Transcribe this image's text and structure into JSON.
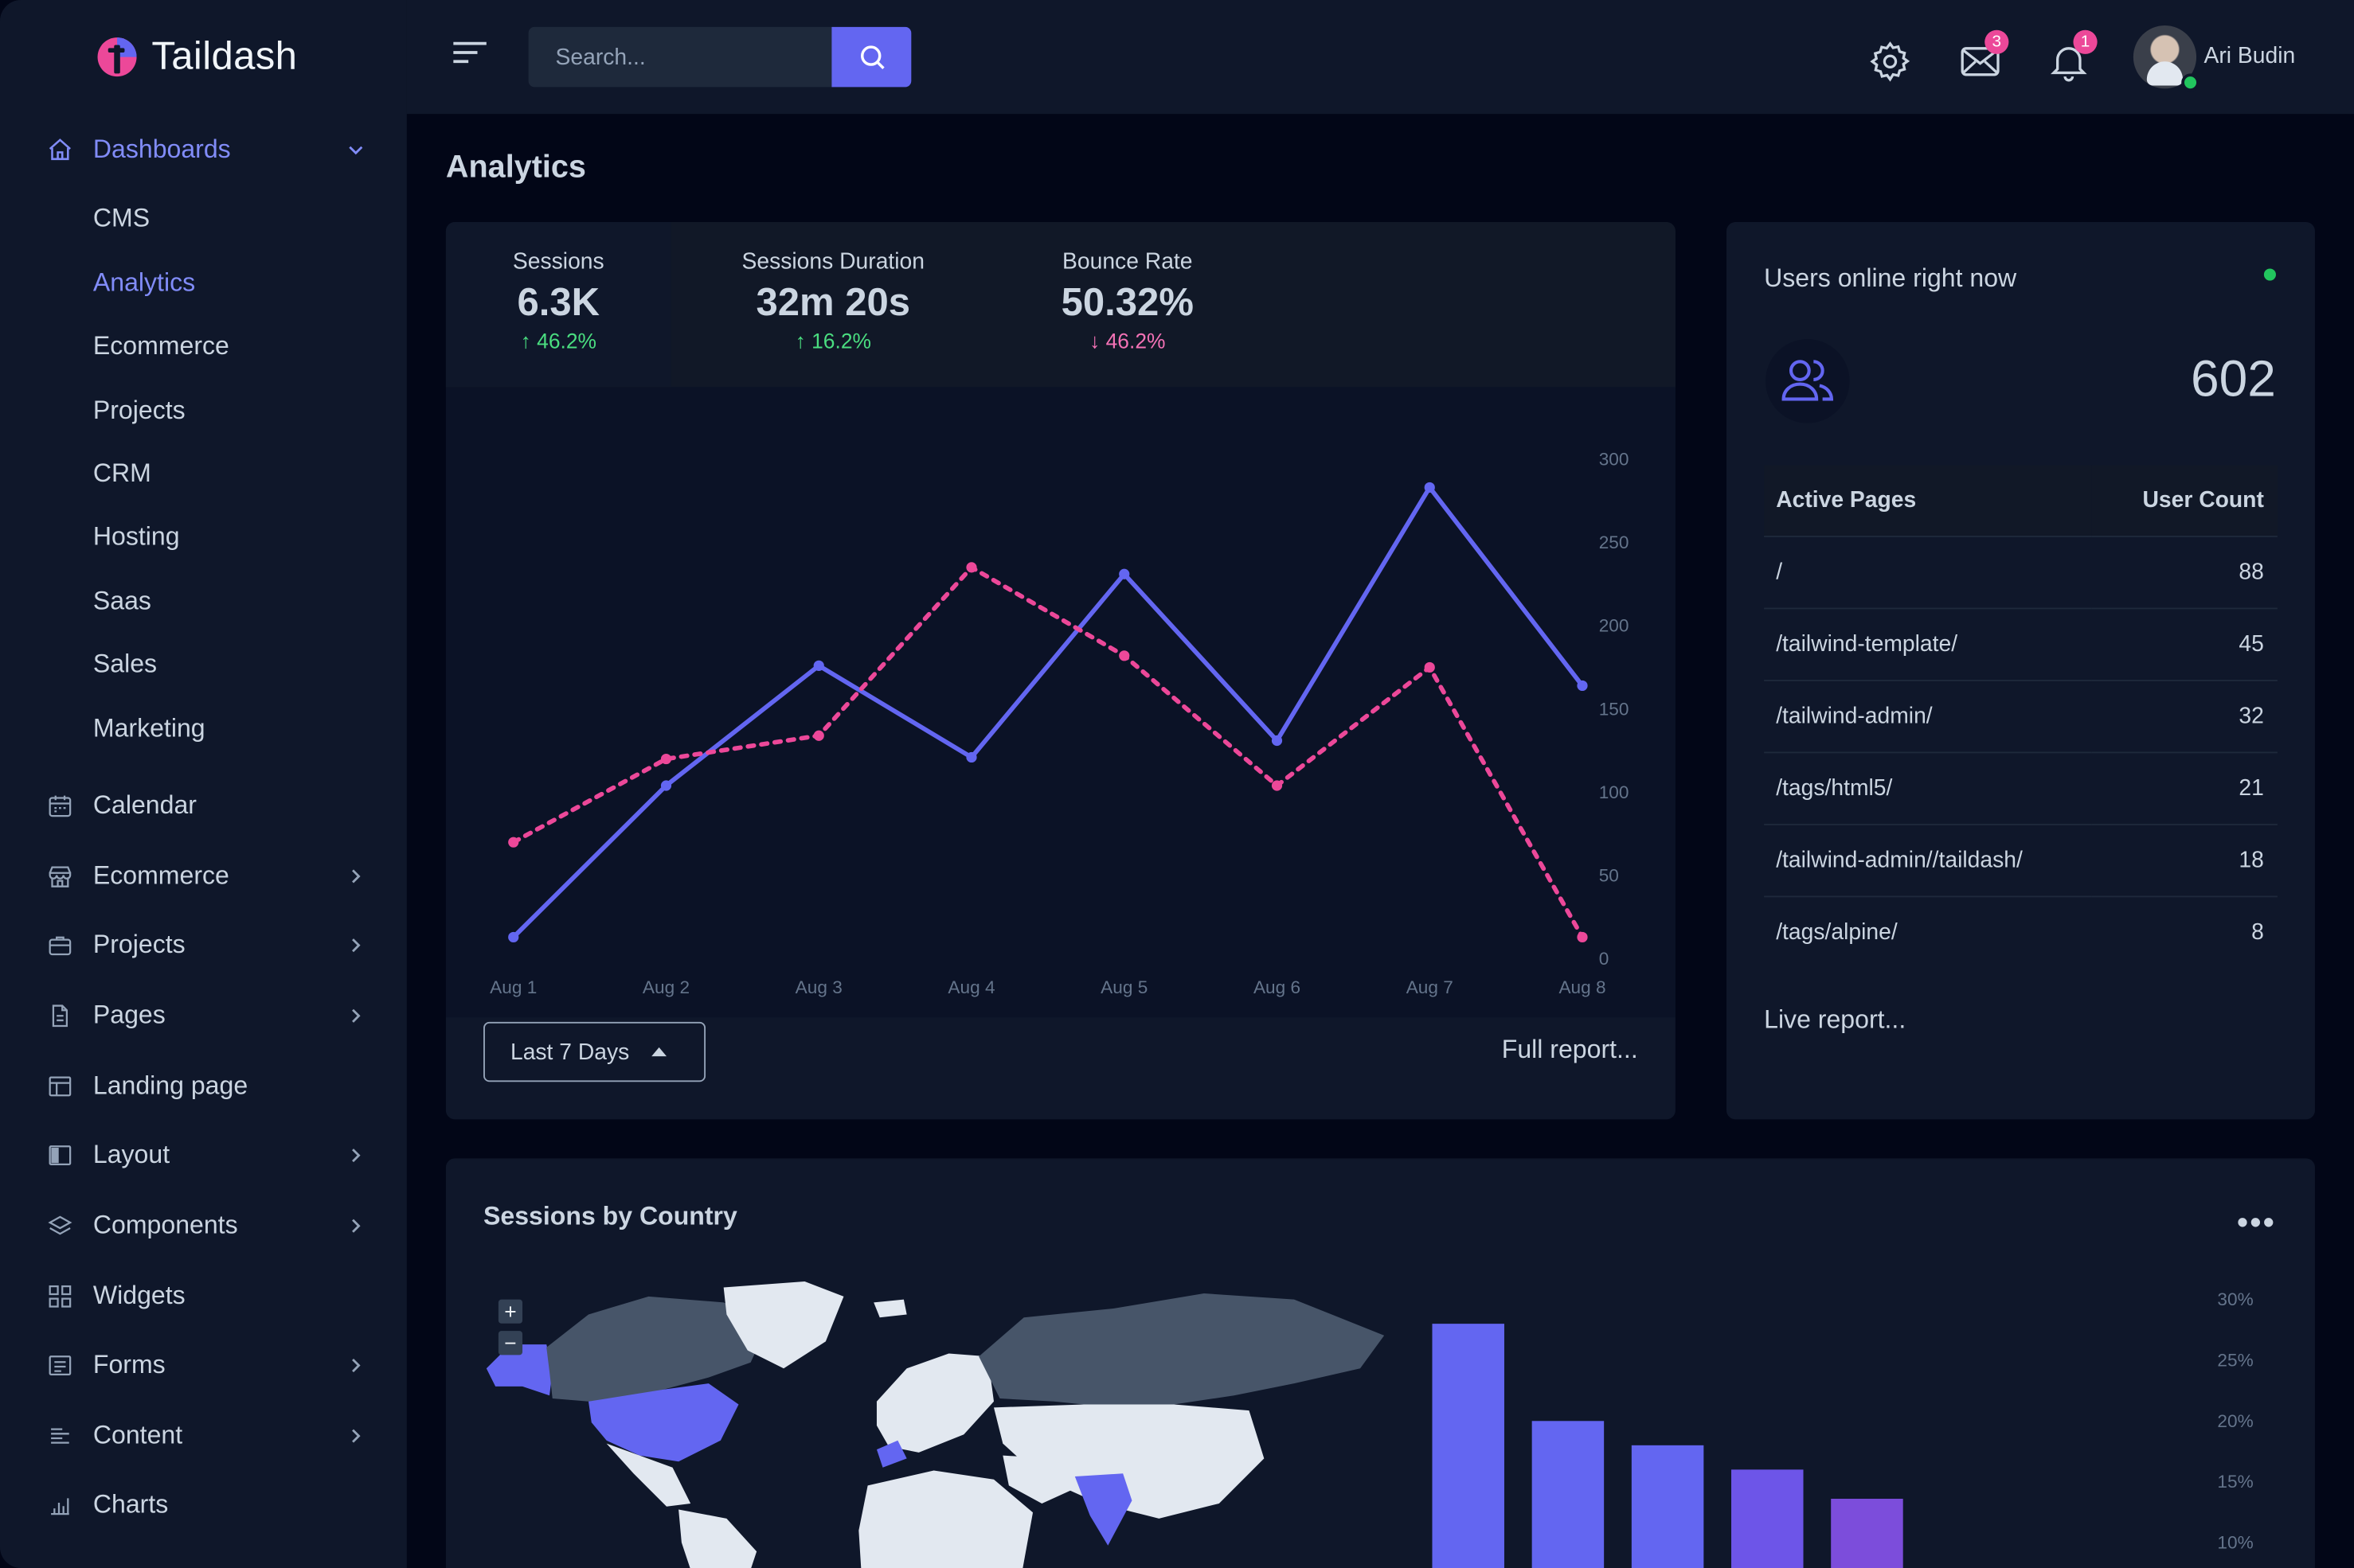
{
  "app": {
    "name": "Taildash"
  },
  "header": {
    "search_placeholder": "Search...",
    "mail_badge": "3",
    "notification_badge": "1",
    "user_name": "Ari Budin"
  },
  "sidebar": {
    "dashboards": "Dashboards",
    "sub_items": [
      "CMS",
      "Analytics",
      "Ecommerce",
      "Projects",
      "CRM",
      "Hosting",
      "Saas",
      "Sales",
      "Marketing"
    ],
    "items": [
      "Calendar",
      "Ecommerce",
      "Projects",
      "Pages",
      "Landing page",
      "Layout",
      "Components",
      "Widgets",
      "Forms",
      "Content",
      "Charts"
    ]
  },
  "page": {
    "title": "Analytics"
  },
  "stats": [
    {
      "label": "Sessions",
      "value": "6.3K",
      "delta": "46.2%",
      "direction": "up"
    },
    {
      "label": "Sessions Duration",
      "value": "32m 20s",
      "delta": "16.2%",
      "direction": "up"
    },
    {
      "label": "Bounce Rate",
      "value": "50.32%",
      "delta": "46.2%",
      "direction": "down"
    }
  ],
  "chart_controls": {
    "range": "Last 7 Days",
    "full_report": "Full report..."
  },
  "chart_data": [
    {
      "type": "line",
      "x": [
        "Aug 1",
        "Aug 2",
        "Aug 3",
        "Aug 4",
        "Aug 5",
        "Aug 6",
        "Aug 7",
        "Aug 8"
      ],
      "ylim": [
        0,
        300
      ],
      "yticks": [
        0,
        50,
        100,
        150,
        200,
        250,
        300
      ],
      "series": [
        {
          "values": [
            13,
            104,
            176,
            121,
            231,
            131,
            283,
            164
          ],
          "color": "#6366f1",
          "style": "solid"
        },
        {
          "values": [
            70,
            120,
            134,
            235,
            182,
            104,
            175,
            13
          ],
          "color": "#ec4899",
          "style": "dashed"
        }
      ]
    },
    {
      "type": "bar",
      "title": "Sessions by Country",
      "yticks": [
        "30%",
        "25%",
        "20%",
        "15%",
        "10%"
      ],
      "ylim": [
        0,
        30
      ],
      "values": [
        28.0,
        20.0,
        18.0,
        16.0,
        13.6
      ],
      "colors": [
        "#6366f1",
        "#6366f1",
        "#6366f1",
        "#6d55e8",
        "#7c4ddb"
      ]
    }
  ],
  "users_online": {
    "title": "Users online right now",
    "count": "602",
    "table_headers": [
      "Active Pages",
      "User Count"
    ],
    "rows": [
      {
        "page": "/",
        "count": "88"
      },
      {
        "page": "/tailwind-template/",
        "count": "45"
      },
      {
        "page": "/tailwind-admin/",
        "count": "32"
      },
      {
        "page": "/tags/html5/",
        "count": "21"
      },
      {
        "page": "/tailwind-admin//taildash/",
        "count": "18"
      },
      {
        "page": "/tags/alpine/",
        "count": "8"
      }
    ],
    "live_report": "Live report..."
  },
  "colors": {
    "accent": "#6366f1",
    "pink": "#ec4899",
    "green": "#22c55e"
  }
}
